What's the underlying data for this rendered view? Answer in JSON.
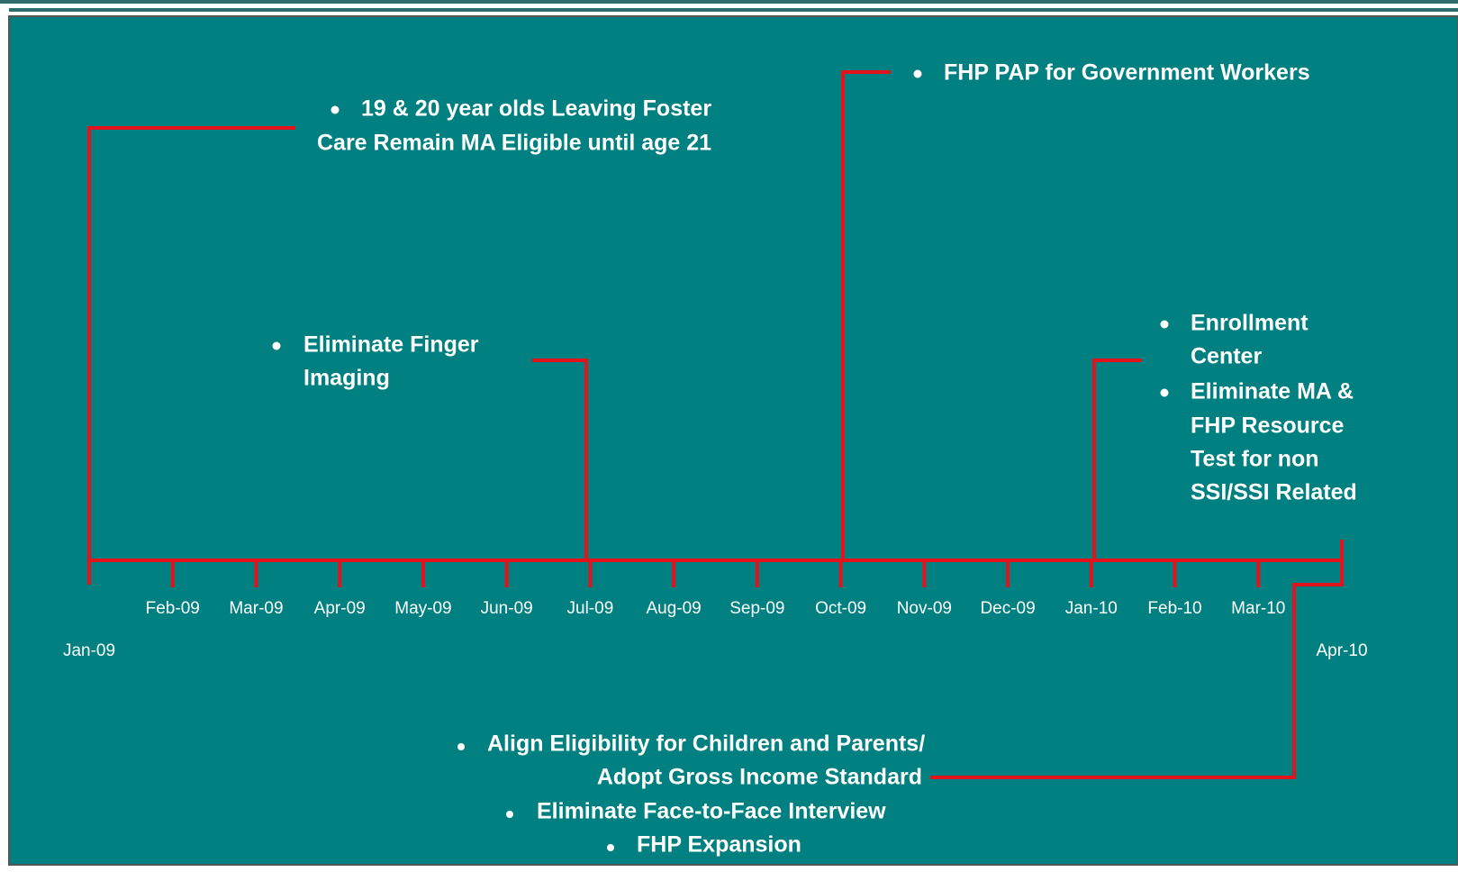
{
  "timeline": {
    "months": [
      "Jan-09",
      "Feb-09",
      "Mar-09",
      "Apr-09",
      "May-09",
      "Jun-09",
      "Jul-09",
      "Aug-09",
      "Sep-09",
      "Oct-09",
      "Nov-09",
      "Dec-09",
      "Jan-10",
      "Feb-10",
      "Mar-10",
      "Apr-10"
    ],
    "callouts": [
      {
        "items": [
          {
            "lines": [
              "19 & 20 year olds Leaving Foster",
              "Care Remain MA Eligible until age  21"
            ]
          }
        ]
      },
      {
        "items": [
          {
            "lines": [
              "Eliminate Finger",
              "Imaging"
            ]
          }
        ]
      },
      {
        "items": [
          {
            "lines": [
              "FHP PAP for Government Workers"
            ]
          }
        ]
      },
      {
        "items": [
          {
            "lines": [
              "Enrollment",
              "Center"
            ]
          },
          {
            "lines": [
              "Eliminate MA &",
              "FHP Resource",
              "Test for non",
              "SSI/SSI Related"
            ]
          }
        ]
      },
      {
        "items": [
          {
            "lines": [
              "Align Eligibility for Children and Parents/",
              "Adopt Gross Income Standard"
            ]
          },
          {
            "lines": [
              "Eliminate Face-to-Face Interview"
            ]
          },
          {
            "lines": [
              "FHP Expansion"
            ]
          }
        ]
      }
    ]
  }
}
